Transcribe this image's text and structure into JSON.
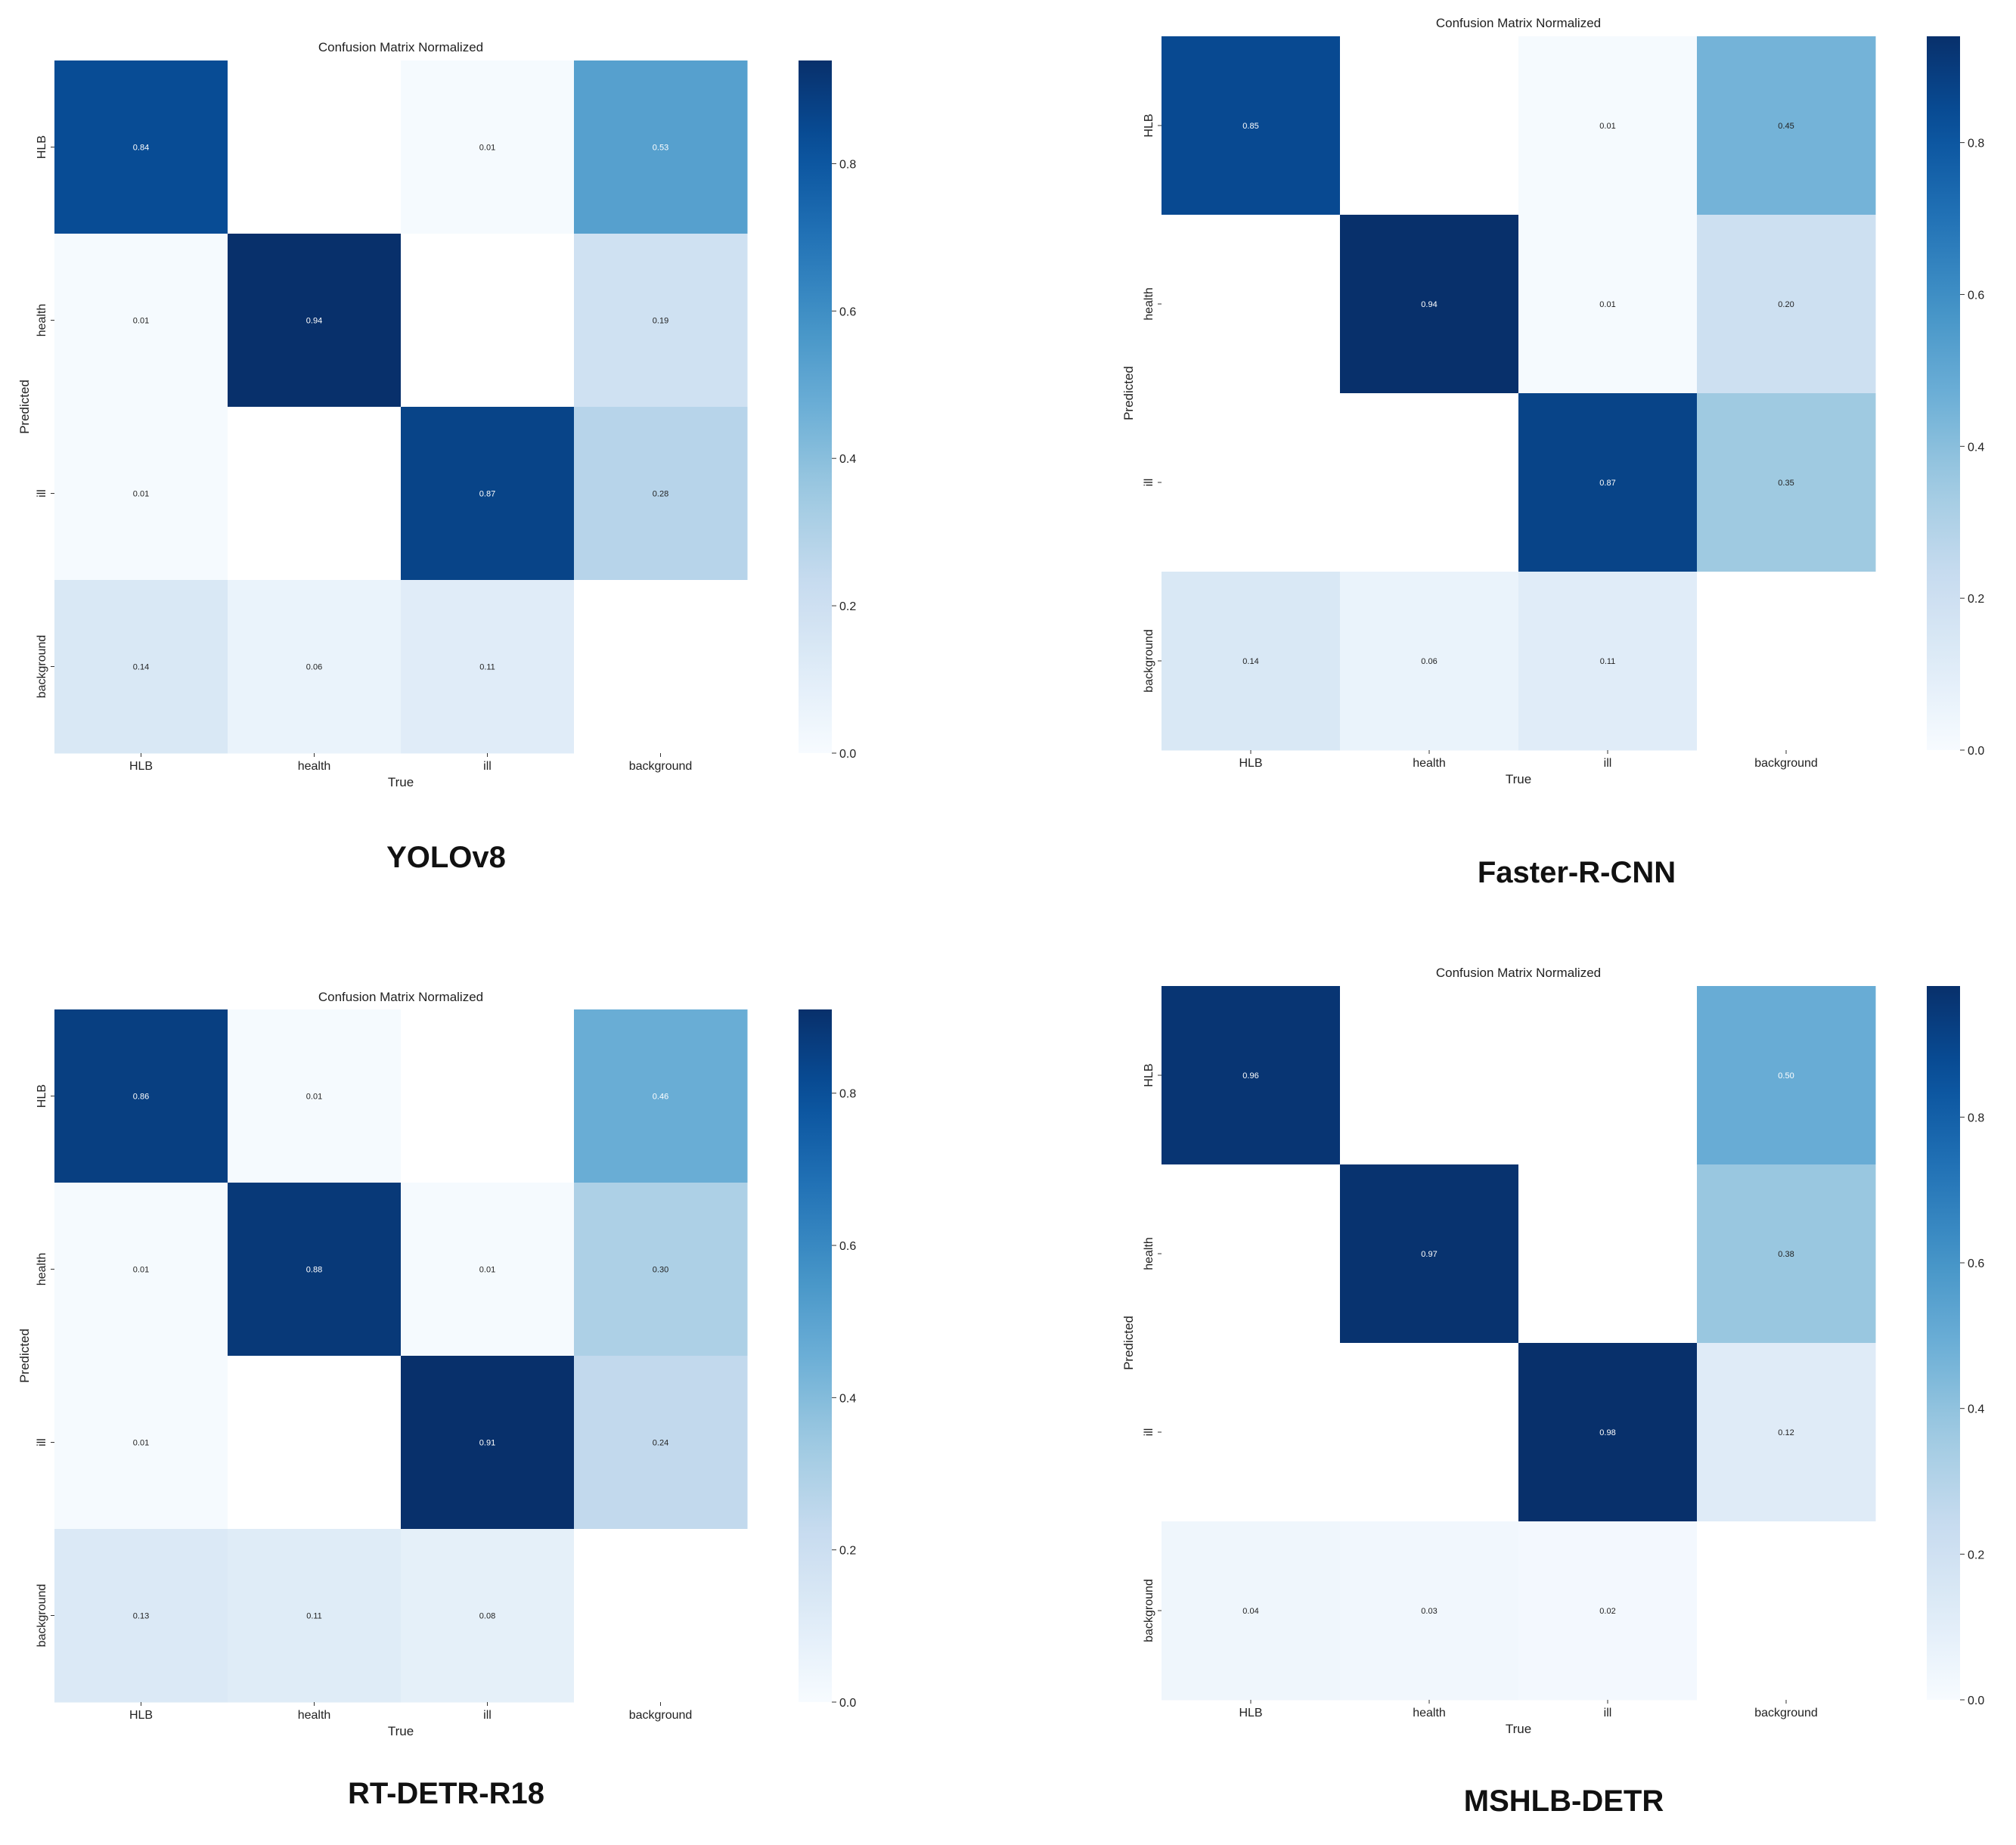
{
  "colormap": {
    "name": "Blues",
    "stops": [
      "#f7fbff",
      "#deebf7",
      "#c6dbef",
      "#9ecae1",
      "#6baed6",
      "#4292c6",
      "#2171b5",
      "#08519c",
      "#08306b"
    ]
  },
  "chart_data": [
    {
      "type": "heatmap",
      "model": "YOLOv8",
      "title": "Confusion Matrix Normalized",
      "xlabel": "True",
      "ylabel": "Predicted",
      "categories": [
        "HLB",
        "health",
        "ill",
        "background"
      ],
      "colorbar_max": 0.94,
      "colorbar_ticks": [
        0.0,
        0.2,
        0.4,
        0.6,
        0.8
      ],
      "values": [
        [
          0.84,
          null,
          0.01,
          0.53
        ],
        [
          0.01,
          0.94,
          null,
          0.19
        ],
        [
          0.01,
          null,
          0.87,
          0.28
        ],
        [
          0.14,
          0.06,
          0.11,
          null
        ]
      ]
    },
    {
      "type": "heatmap",
      "model": "Faster-R-CNN",
      "title": "Confusion Matrix Normalized",
      "xlabel": "True",
      "ylabel": "Predicted",
      "categories": [
        "HLB",
        "health",
        "ill",
        "background"
      ],
      "colorbar_max": 0.94,
      "colorbar_ticks": [
        0.0,
        0.2,
        0.4,
        0.6,
        0.8
      ],
      "values": [
        [
          0.85,
          null,
          0.01,
          0.45
        ],
        [
          null,
          0.94,
          0.01,
          0.2
        ],
        [
          null,
          null,
          0.87,
          0.35
        ],
        [
          0.14,
          0.06,
          0.11,
          null
        ]
      ]
    },
    {
      "type": "heatmap",
      "model": "RT-DETR-R18",
      "title": "Confusion Matrix Normalized",
      "xlabel": "True",
      "ylabel": "Predicted",
      "categories": [
        "HLB",
        "health",
        "ill",
        "background"
      ],
      "colorbar_max": 0.91,
      "colorbar_ticks": [
        0.0,
        0.2,
        0.4,
        0.6,
        0.8
      ],
      "values": [
        [
          0.86,
          0.01,
          null,
          0.46
        ],
        [
          0.01,
          0.88,
          0.01,
          0.3
        ],
        [
          0.01,
          null,
          0.91,
          0.24
        ],
        [
          0.13,
          0.11,
          0.08,
          null
        ]
      ]
    },
    {
      "type": "heatmap",
      "model": "MSHLB-DETR",
      "title": "Confusion Matrix Normalized",
      "xlabel": "True",
      "ylabel": "Predicted",
      "categories": [
        "HLB",
        "health",
        "ill",
        "background"
      ],
      "colorbar_max": 0.98,
      "colorbar_ticks": [
        0.0,
        0.2,
        0.4,
        0.6,
        0.8
      ],
      "values": [
        [
          0.96,
          null,
          null,
          0.5
        ],
        [
          null,
          0.97,
          null,
          0.38
        ],
        [
          null,
          null,
          0.98,
          0.12
        ],
        [
          0.04,
          0.03,
          0.02,
          null
        ]
      ]
    }
  ]
}
